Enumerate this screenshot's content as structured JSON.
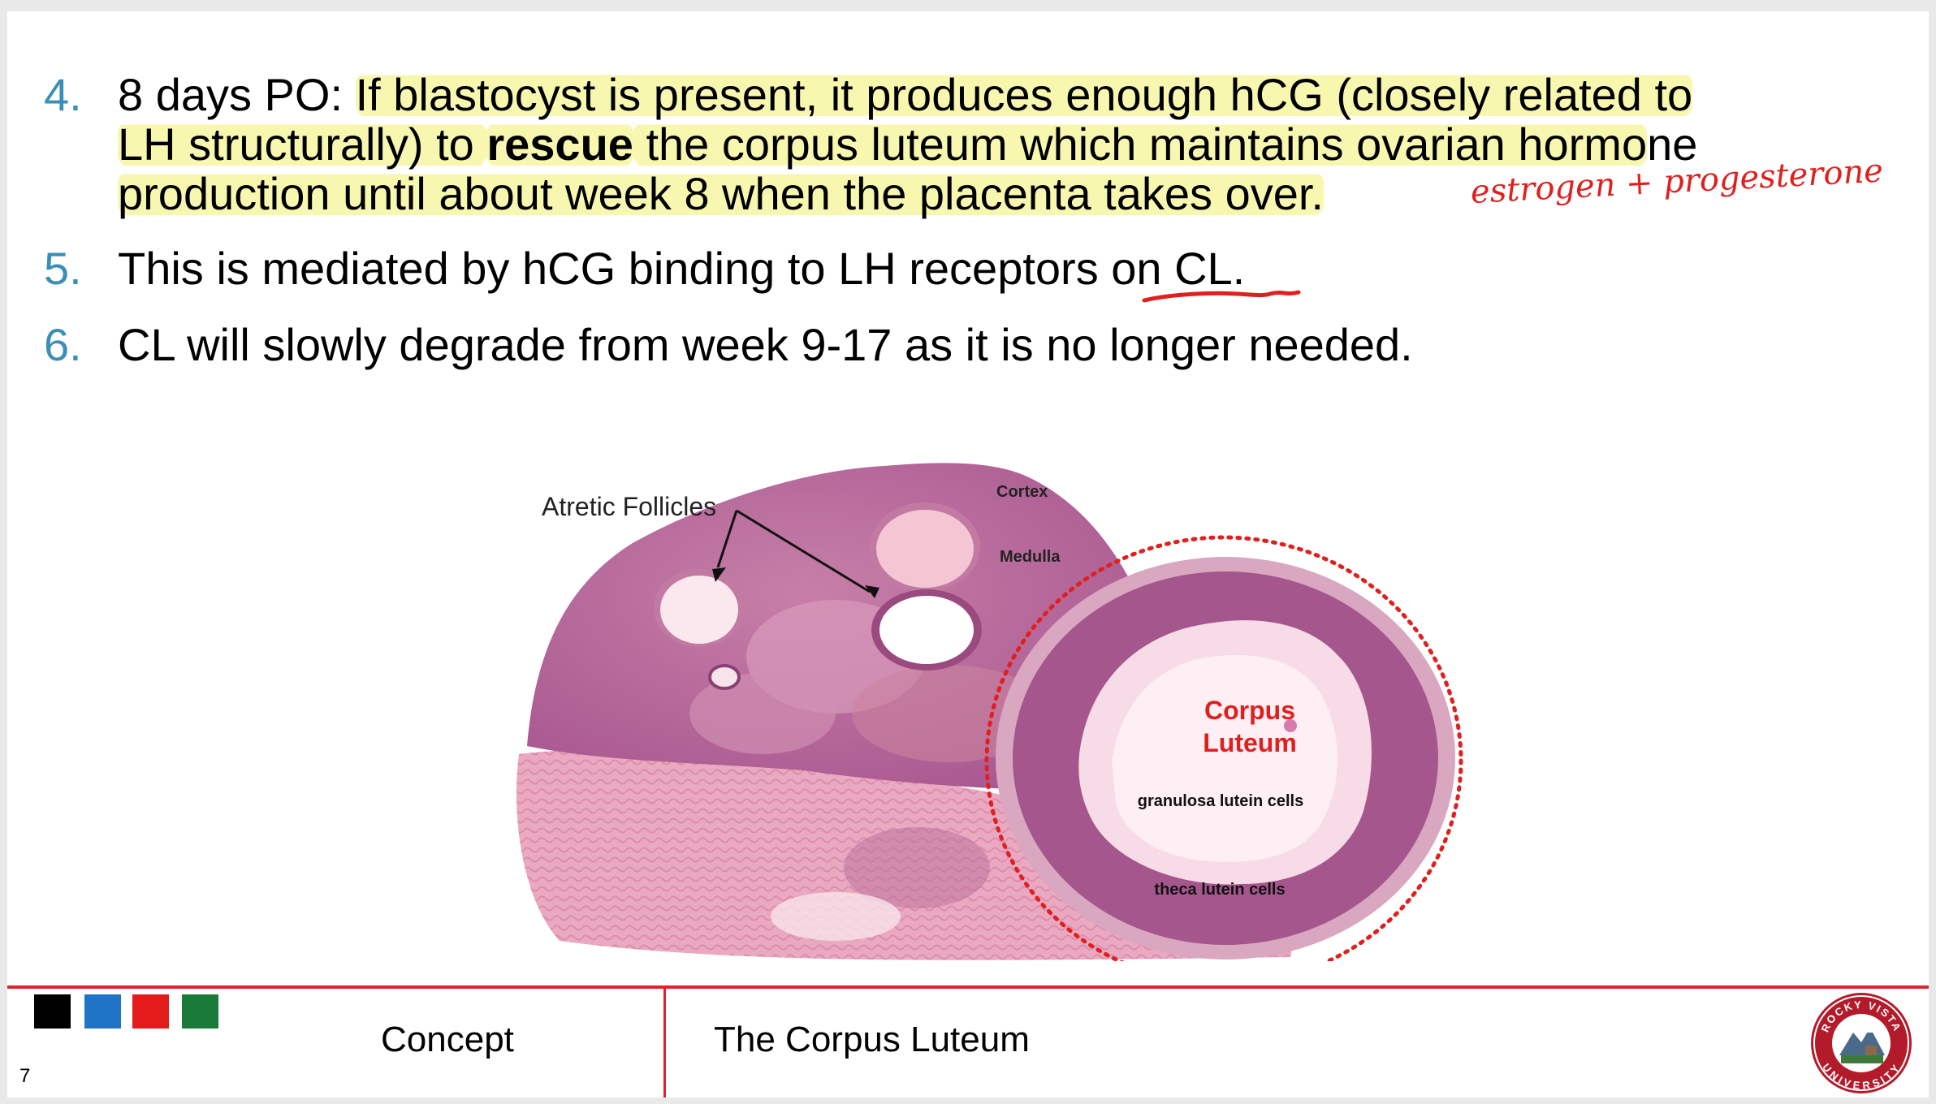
{
  "bullets": [
    {
      "number": "4.",
      "lines": [
        {
          "a": "8 days PO: ",
          "hl": "If blastocyst is present, it produces enough hCG (closely related to"
        },
        {
          "hl1": "LH structurally) to ",
          "bold": "rescue",
          "hl2": " the corpus luteum which maintains ovarian hormo",
          "plain": "ne"
        },
        {
          "hl": "production until about week 8 when the placenta takes over."
        }
      ],
      "handwriting": "estrogen + progesterone"
    },
    {
      "number": "5.",
      "text": "This is mediated by hCG binding to LH receptors on CL."
    },
    {
      "number": "6.",
      "text": "CL will slowly degrade from week 9-17 as it is no longer needed."
    }
  ],
  "figure": {
    "labels": {
      "atretic": "Atretic Follicles",
      "cortex": "Cortex",
      "medulla": "Medulla",
      "corpus_line1": "Corpus",
      "corpus_line2": "Luteum",
      "granulosa": "granulosa lutein cells",
      "theca": "theca lutein cells"
    },
    "colors": {
      "tissue_dark": "#a8578f",
      "tissue_mid": "#c77fa8",
      "stroma": "#e7a8bf",
      "lumen": "#fbe8ee",
      "label_red": "#e0201f"
    }
  },
  "footer": {
    "squares": [
      "#000000",
      "#1f74c6",
      "#e31b1b",
      "#1a7a3a"
    ],
    "concept": "Concept",
    "title": "The Corpus Luteum",
    "page_number": "7",
    "logo": {
      "top_text": "ROCKY VISTA",
      "bottom_text": "UNIVERSITY",
      "icon": "mountain-seal-icon"
    }
  }
}
